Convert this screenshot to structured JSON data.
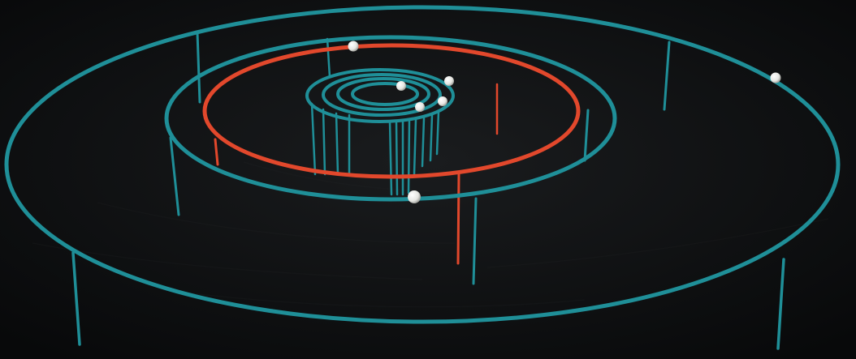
{
  "scene": {
    "description_visible_text": [],
    "colors": {
      "background": "#0b0d0f",
      "ground": "#121416",
      "teal": "#1f8f98",
      "teal_highlight": "#2bb3bd",
      "red": "#e2482c",
      "ball": "#f1f1ee"
    },
    "rings": [
      {
        "name": "outer-ring",
        "color": "teal"
      },
      {
        "name": "large-ring",
        "color": "teal"
      },
      {
        "name": "middle-ring",
        "color": "red"
      },
      {
        "name": "inner-ring-1",
        "color": "teal"
      },
      {
        "name": "inner-ring-2",
        "color": "teal"
      },
      {
        "name": "inner-ring-3",
        "color": "teal"
      },
      {
        "name": "inner-ring-4",
        "color": "teal"
      }
    ],
    "balls_count": 7
  }
}
